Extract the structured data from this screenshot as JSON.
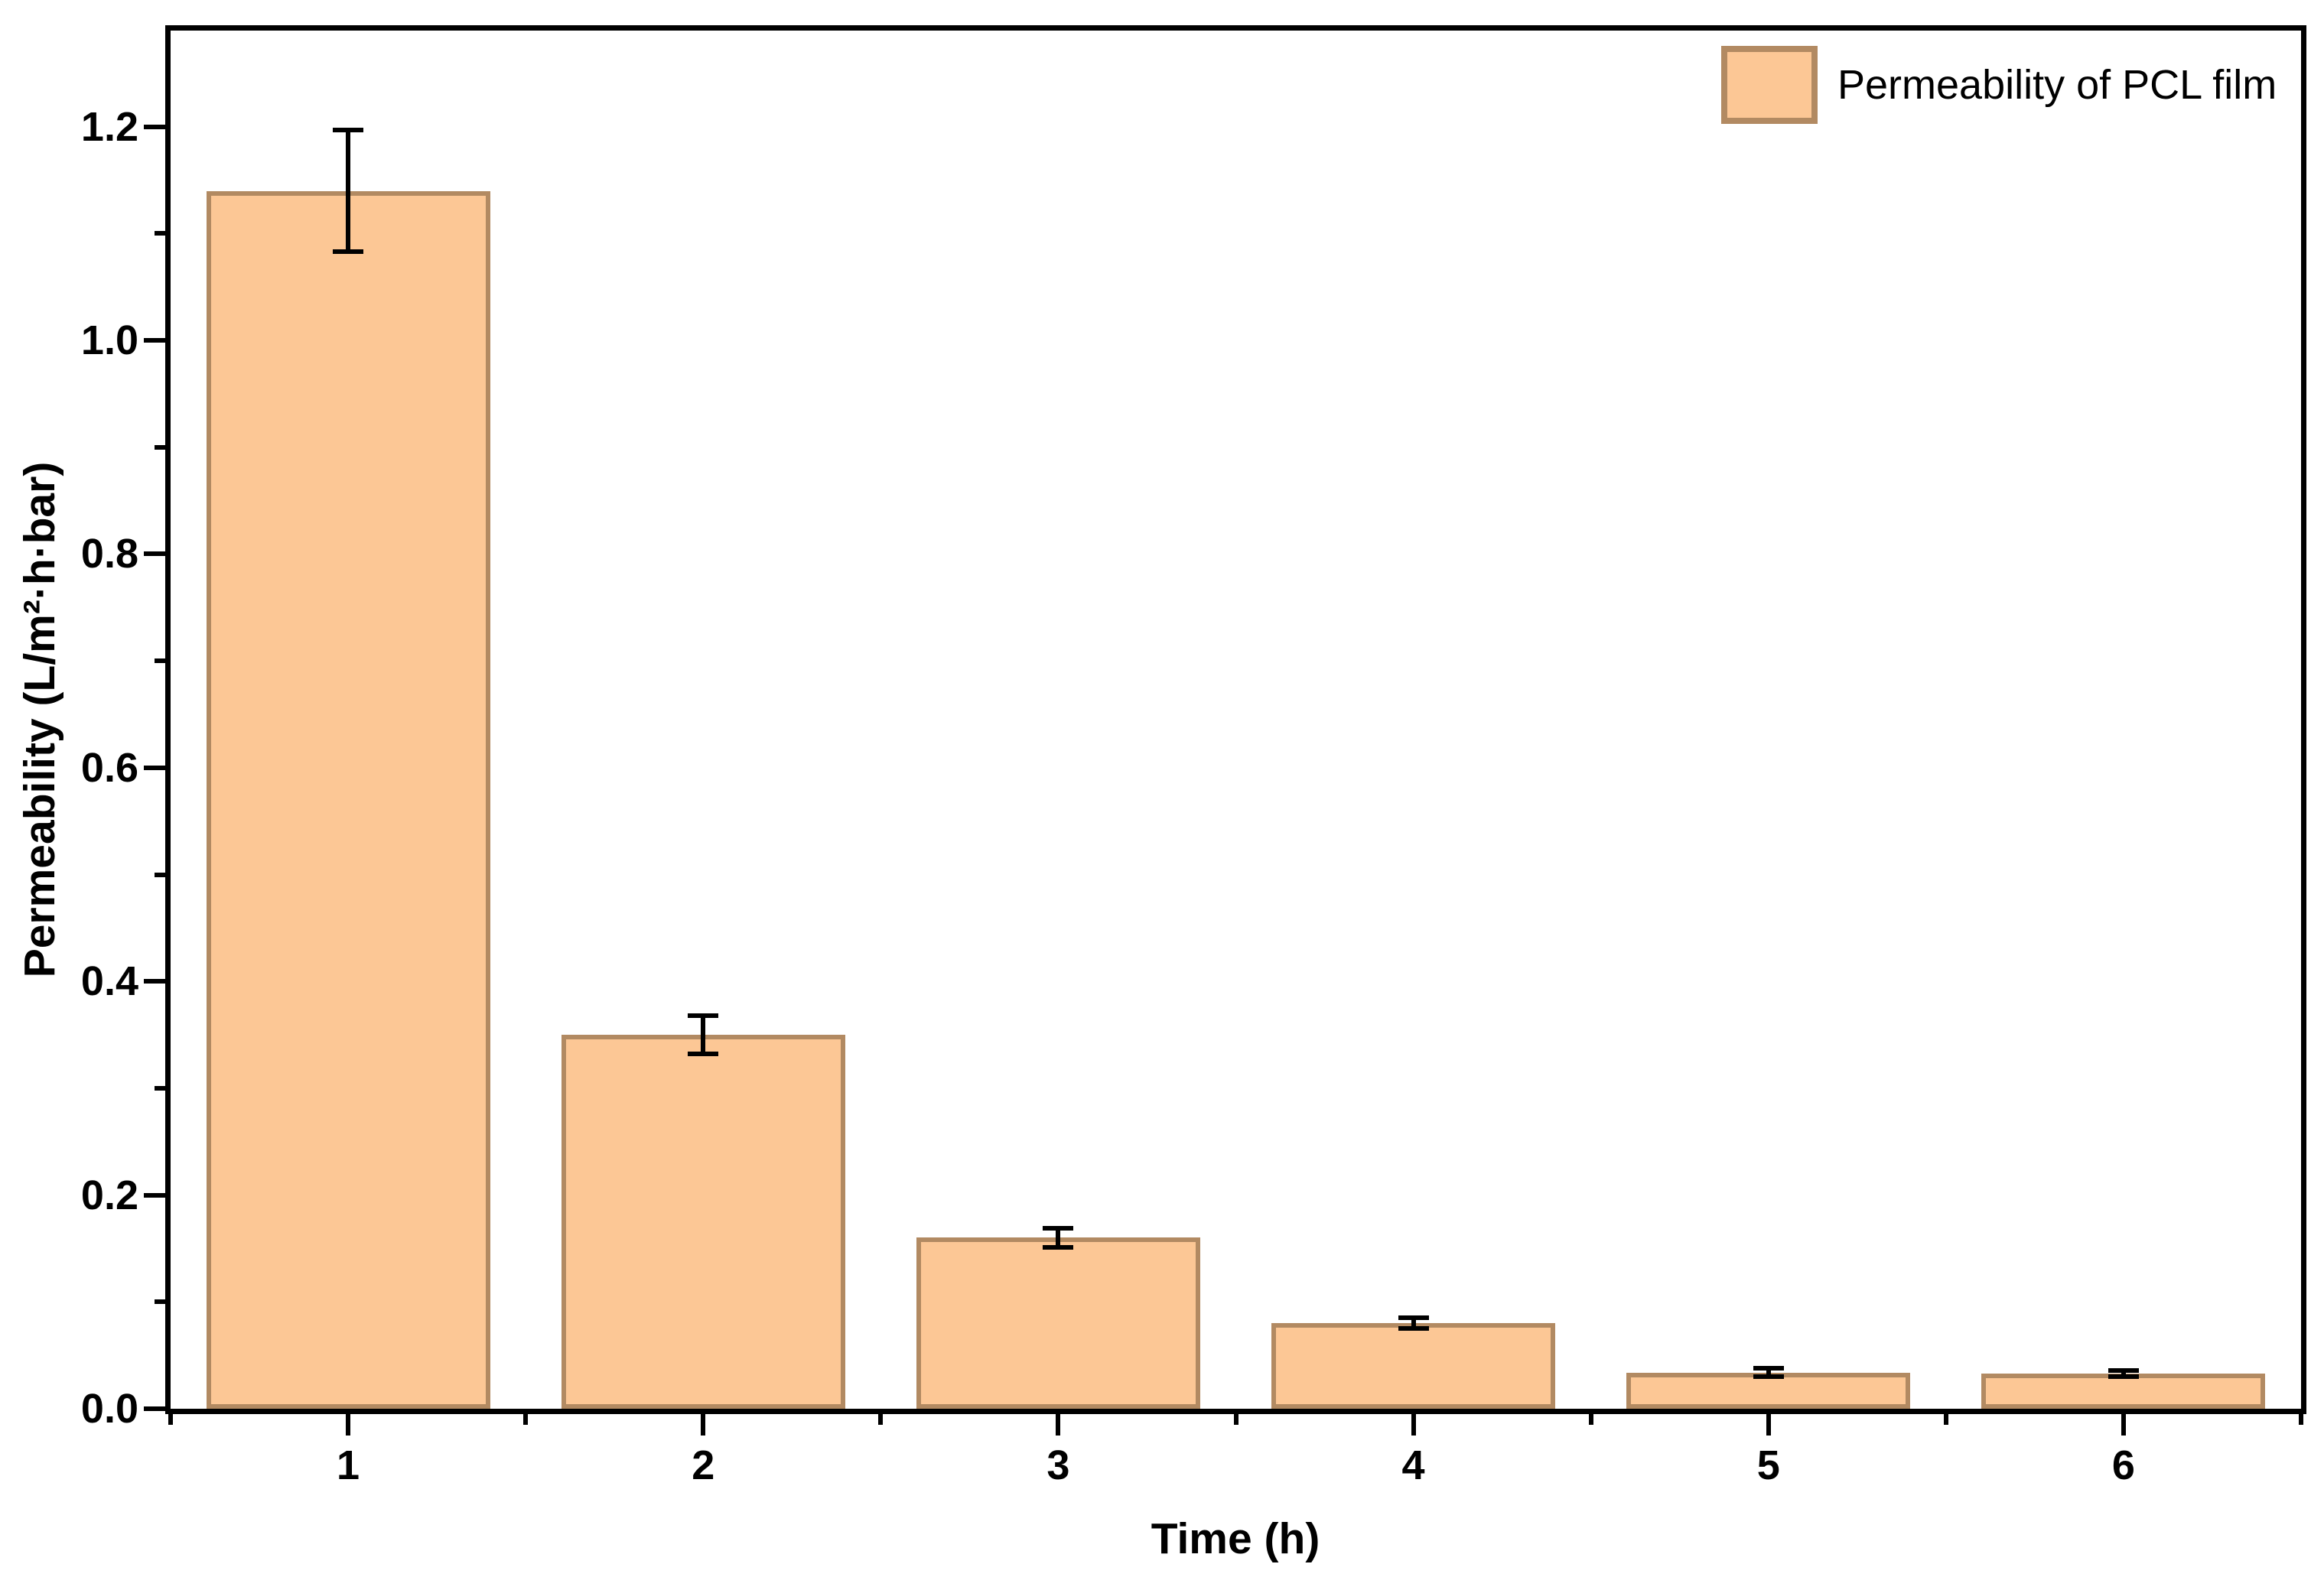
{
  "chart_data": {
    "type": "bar",
    "title": "",
    "categories": [
      "1",
      "2",
      "3",
      "4",
      "5",
      "6"
    ],
    "series": [
      {
        "name": "Permeability of PCL film",
        "values": [
          1.14,
          0.35,
          0.16,
          0.08,
          0.034,
          0.033
        ],
        "errors": [
          0.057,
          0.018,
          0.009,
          0.005,
          0.004,
          0.003
        ]
      }
    ],
    "xlabel": "Time (h)",
    "ylabel": "Permeability (L/m²·h·bar)",
    "legend": [
      "Permeability of PCL film"
    ],
    "legend_position": "top-right-inside",
    "ylim": [
      0,
      1.29
    ],
    "y_major_ticks": [
      "0.0",
      "0.2",
      "0.4",
      "0.6",
      "0.8",
      "1.0",
      "1.2"
    ],
    "y_major_step": 0.2,
    "y_minor_step": 0.1,
    "grid": false,
    "bar_fill": "#FCC795",
    "bar_edge": "#B28A62",
    "error_color": "#000000",
    "axis_color": "#000000",
    "background": "#FFFFFF"
  }
}
